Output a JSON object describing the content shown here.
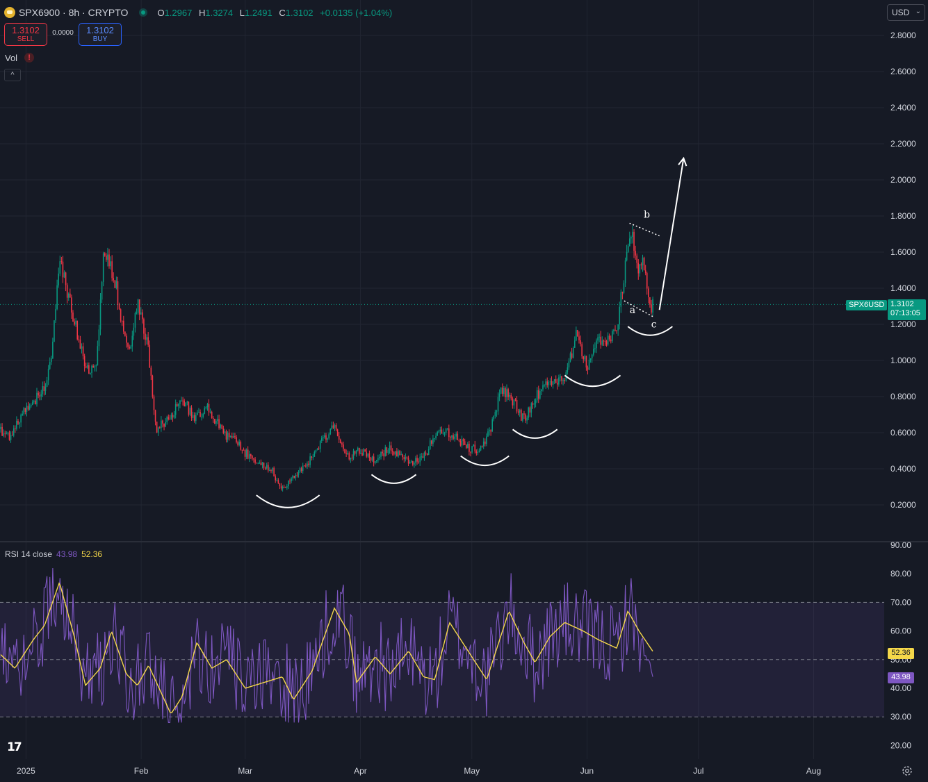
{
  "header": {
    "symbol_line": "SPX6900 · 8h · CRYPTO",
    "ohlc": [
      {
        "label": "O",
        "value": "1.2967"
      },
      {
        "label": "H",
        "value": "1.3274"
      },
      {
        "label": "L",
        "value": "1.2491"
      },
      {
        "label": "C",
        "value": "1.3102"
      },
      {
        "label": "",
        "value": "+0.0135 (+1.04%)"
      }
    ],
    "colors": {
      "up": "#089981",
      "down": "#f23645",
      "rsi": "#7e57c2",
      "rsi_ma": "#f5d84a",
      "background": "#161a25"
    }
  },
  "trade": {
    "sell_price": "1.3102",
    "sell_label": "SELL",
    "spread": "0.0000",
    "buy_price": "1.3102",
    "buy_label": "BUY"
  },
  "volume": {
    "label": "Vol",
    "warning_icon": "!",
    "collapse_icon": "^"
  },
  "currency": {
    "label": "USD",
    "chevron": "⌄"
  },
  "price_tags": {
    "symbol": "SPX6USD",
    "last": "1.3102",
    "countdown": "07:13:05"
  },
  "rsi": {
    "label": "RSI 14 close",
    "value": "43.98",
    "ma_value": "52.36"
  },
  "chart_data": {
    "type": "candlestick",
    "interval": "8h",
    "price_axis": {
      "ticks": [
        "2.8000",
        "2.6000",
        "2.4000",
        "2.2000",
        "2.0000",
        "1.8000",
        "1.6000",
        "1.4000",
        "1.2000",
        "1.0000",
        "0.8000",
        "0.6000",
        "0.4000",
        "0.2000"
      ],
      "range": [
        0.1,
        2.9
      ]
    },
    "time_axis": {
      "labels": [
        "2025",
        "Feb",
        "Mar",
        "Apr",
        "May",
        "Jun",
        "Jul",
        "Aug"
      ],
      "range": [
        "2024-12-25",
        "2025-08-20"
      ]
    },
    "last_price": 1.3102,
    "price_path": [
      [
        "2024-12-25",
        0.62
      ],
      [
        "2024-12-28",
        0.57
      ],
      [
        "2024-12-31",
        0.72
      ],
      [
        "2025-01-03",
        0.76
      ],
      [
        "2025-01-06",
        0.86
      ],
      [
        "2025-01-08",
        1.05
      ],
      [
        "2025-01-10",
        1.58
      ],
      [
        "2025-01-13",
        1.3
      ],
      [
        "2025-01-16",
        1.05
      ],
      [
        "2025-01-18",
        0.92
      ],
      [
        "2025-01-20",
        0.99
      ],
      [
        "2025-01-22",
        1.62
      ],
      [
        "2025-01-25",
        1.44
      ],
      [
        "2025-01-27",
        1.18
      ],
      [
        "2025-01-29",
        1.02
      ],
      [
        "2025-01-31",
        1.33
      ],
      [
        "2025-02-03",
        1.05
      ],
      [
        "2025-02-05",
        0.62
      ],
      [
        "2025-02-08",
        0.66
      ],
      [
        "2025-02-12",
        0.8
      ],
      [
        "2025-02-15",
        0.68
      ],
      [
        "2025-02-19",
        0.74
      ],
      [
        "2025-02-23",
        0.6
      ],
      [
        "2025-02-27",
        0.54
      ],
      [
        "2025-03-03",
        0.44
      ],
      [
        "2025-03-08",
        0.4
      ],
      [
        "2025-03-11",
        0.28
      ],
      [
        "2025-03-14",
        0.36
      ],
      [
        "2025-03-18",
        0.44
      ],
      [
        "2025-03-22",
        0.56
      ],
      [
        "2025-03-25",
        0.64
      ],
      [
        "2025-03-28",
        0.46
      ],
      [
        "2025-04-01",
        0.5
      ],
      [
        "2025-04-05",
        0.44
      ],
      [
        "2025-04-09",
        0.52
      ],
      [
        "2025-04-14",
        0.44
      ],
      [
        "2025-04-18",
        0.46
      ],
      [
        "2025-04-22",
        0.63
      ],
      [
        "2025-04-26",
        0.58
      ],
      [
        "2025-04-30",
        0.52
      ],
      [
        "2025-05-03",
        0.5
      ],
      [
        "2025-05-06",
        0.62
      ],
      [
        "2025-05-09",
        0.85
      ],
      [
        "2025-05-12",
        0.78
      ],
      [
        "2025-05-15",
        0.67
      ],
      [
        "2025-05-18",
        0.78
      ],
      [
        "2025-05-21",
        0.9
      ],
      [
        "2025-05-24",
        0.86
      ],
      [
        "2025-05-27",
        0.95
      ],
      [
        "2025-05-29",
        1.16
      ],
      [
        "2025-06-01",
        0.96
      ],
      [
        "2025-06-04",
        1.12
      ],
      [
        "2025-06-07",
        1.1
      ],
      [
        "2025-06-09",
        1.18
      ],
      [
        "2025-06-11",
        1.48
      ],
      [
        "2025-06-13",
        1.7
      ],
      [
        "2025-06-15",
        1.48
      ],
      [
        "2025-06-16",
        1.6
      ],
      [
        "2025-06-18",
        1.28
      ],
      [
        "2025-06-19",
        1.31
      ]
    ],
    "annotations": {
      "wave_labels": [
        "a",
        "b",
        "c"
      ],
      "rounded_bottoms": [
        {
          "x_start": "2025-03-04",
          "x_end": "2025-03-21",
          "y": 0.2
        },
        {
          "x_start": "2025-04-04",
          "x_end": "2025-04-16",
          "y": 0.33
        },
        {
          "x_start": "2025-04-28",
          "x_end": "2025-05-11",
          "y": 0.43
        },
        {
          "x_start": "2025-05-12",
          "x_end": "2025-05-24",
          "y": 0.58
        },
        {
          "x_start": "2025-05-26",
          "x_end": "2025-06-10",
          "y": 0.87
        },
        {
          "x_start": "2025-06-12",
          "x_end": "2025-06-24",
          "y": 1.15
        }
      ],
      "arrow_target": 2.12,
      "arrow_date": "2025-06-27"
    },
    "rsi": {
      "period": 14,
      "axis_ticks": [
        "90.00",
        "80.00",
        "70.00",
        "60.00",
        "50.00",
        "40.00",
        "30.00",
        "20.00"
      ],
      "range": [
        15,
        91
      ],
      "overbought": 70,
      "oversold": 30,
      "middle": 50,
      "last": 43.98,
      "ma_last": 52.36,
      "ma_path": [
        [
          "2024-12-25",
          52
        ],
        [
          "2024-12-29",
          47
        ],
        [
          "2025-01-03",
          57
        ],
        [
          "2025-01-06",
          62
        ],
        [
          "2025-01-10",
          77
        ],
        [
          "2025-01-14",
          58
        ],
        [
          "2025-01-17",
          41
        ],
        [
          "2025-01-21",
          47
        ],
        [
          "2025-01-24",
          60
        ],
        [
          "2025-01-28",
          45
        ],
        [
          "2025-01-31",
          41
        ],
        [
          "2025-02-03",
          48
        ],
        [
          "2025-02-09",
          31
        ],
        [
          "2025-02-12",
          37
        ],
        [
          "2025-02-16",
          56
        ],
        [
          "2025-02-20",
          47
        ],
        [
          "2025-02-24",
          50
        ],
        [
          "2025-03-01",
          40
        ],
        [
          "2025-03-06",
          42
        ],
        [
          "2025-03-11",
          44
        ],
        [
          "2025-03-14",
          36
        ],
        [
          "2025-03-19",
          46
        ],
        [
          "2025-03-25",
          68
        ],
        [
          "2025-03-29",
          59
        ],
        [
          "2025-03-31",
          42
        ],
        [
          "2025-04-05",
          51
        ],
        [
          "2025-04-09",
          45
        ],
        [
          "2025-04-14",
          53
        ],
        [
          "2025-04-18",
          44
        ],
        [
          "2025-04-21",
          43
        ],
        [
          "2025-04-25",
          63
        ],
        [
          "2025-04-29",
          55
        ],
        [
          "2025-05-05",
          43
        ],
        [
          "2025-05-11",
          67
        ],
        [
          "2025-05-15",
          56
        ],
        [
          "2025-05-18",
          49
        ],
        [
          "2025-05-22",
          58
        ],
        [
          "2025-05-26",
          63
        ],
        [
          "2025-05-31",
          60
        ],
        [
          "2025-06-04",
          57
        ],
        [
          "2025-06-09",
          54
        ],
        [
          "2025-06-12",
          67
        ],
        [
          "2025-06-15",
          60
        ],
        [
          "2025-06-19",
          52.36
        ]
      ]
    }
  }
}
